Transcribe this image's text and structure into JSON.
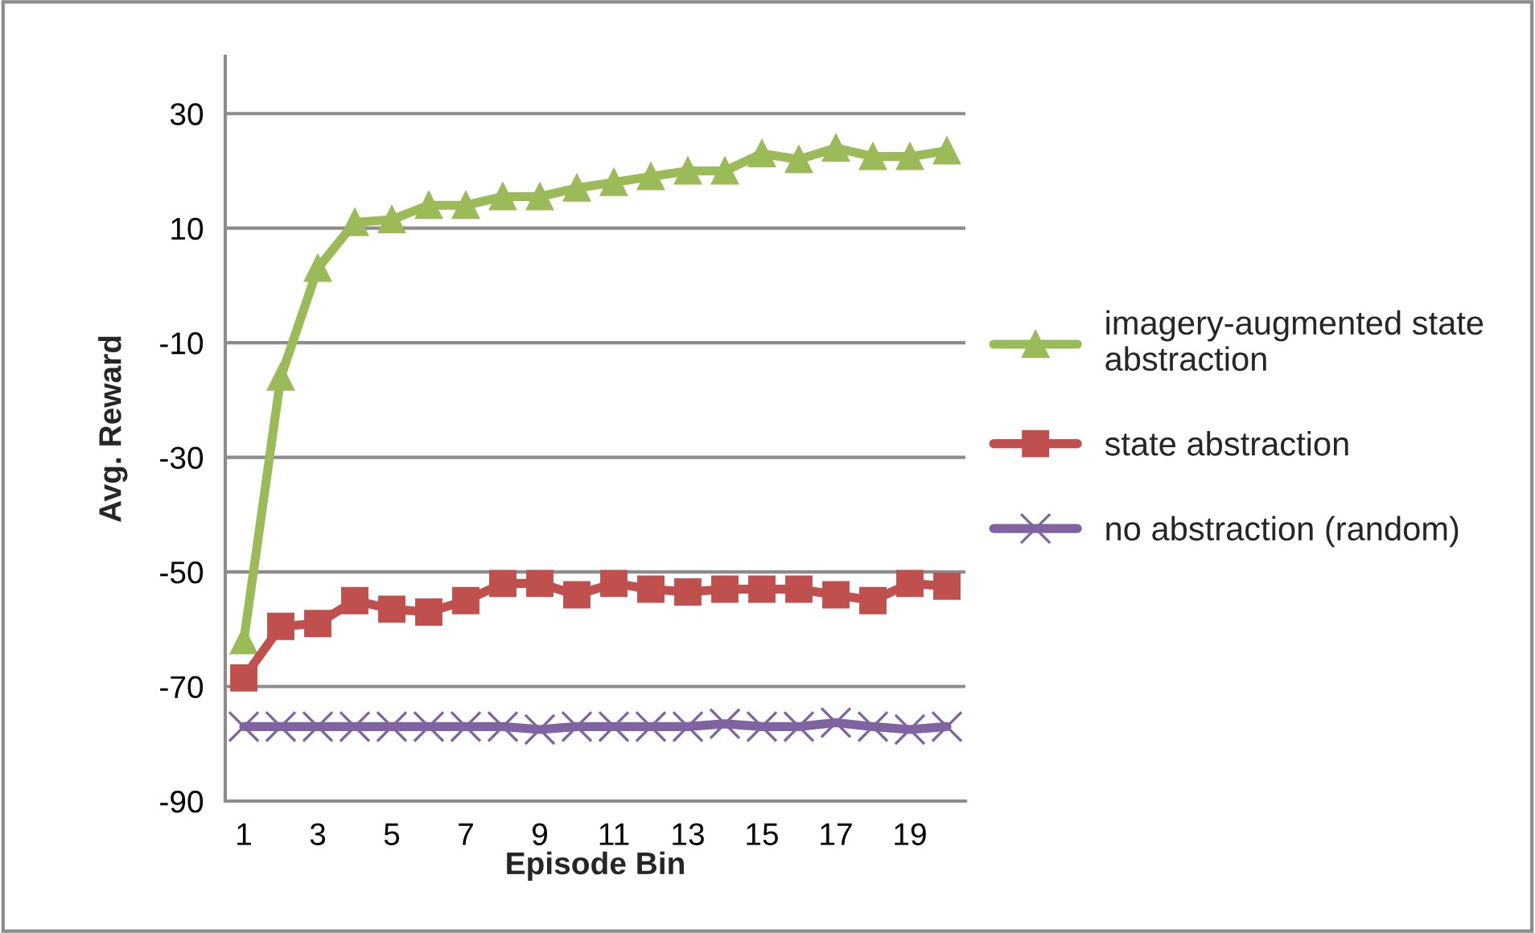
{
  "chart_data": {
    "type": "line",
    "xlabel": "Episode Bin",
    "ylabel": "Avg. Reward",
    "categories": [
      "1",
      null,
      "3",
      null,
      "5",
      null,
      "7",
      null,
      "9",
      null,
      "11",
      null,
      "13",
      null,
      "15",
      null,
      "17",
      null,
      "19",
      null
    ],
    "series": [
      {
        "name": "imagery-augmented state abstraction",
        "color": "#9bbb59",
        "marker": "triangle",
        "values": [
          -62,
          -16,
          3,
          11,
          11.5,
          14,
          14,
          15.5,
          15.5,
          17,
          18,
          19,
          20,
          20,
          23,
          22,
          24,
          22.5,
          22.5,
          23.5
        ]
      },
      {
        "name": "state abstraction",
        "color": "#c0504d",
        "marker": "square",
        "values": [
          -68.5,
          -59.5,
          -59,
          -55,
          -56.5,
          -57,
          -55,
          -52,
          -52,
          -54,
          -52,
          -53,
          -53.5,
          -53,
          -53,
          -53,
          -54,
          -55,
          -52,
          -52.5
        ]
      },
      {
        "name": "no abstraction (random)",
        "color": "#8064a2",
        "marker": "cross",
        "values": [
          -77,
          -77,
          -77,
          -77,
          -77,
          -77,
          -77,
          -77,
          -77.5,
          -77,
          -77,
          -77,
          -77,
          -76.5,
          -77,
          -77,
          -76.3,
          -77,
          -77.5,
          -77
        ]
      }
    ],
    "ylim": [
      -90,
      40
    ],
    "yticks": [
      -90,
      -70,
      -50,
      -30,
      -10,
      10,
      30
    ],
    "grid": "y",
    "legend": "right"
  }
}
